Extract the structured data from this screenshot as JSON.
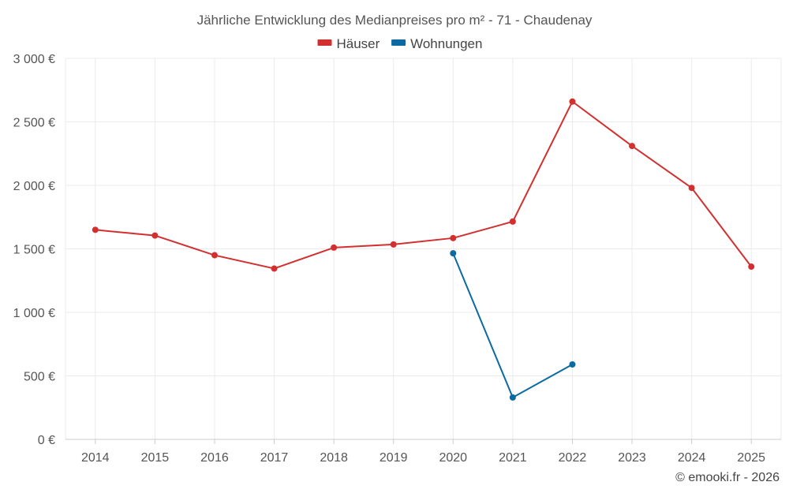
{
  "chart_data": {
    "type": "line",
    "title": "Jährliche Entwicklung des Medianpreises pro m² - 71 - Chaudenay",
    "x": [
      "2014",
      "2015",
      "2016",
      "2017",
      "2018",
      "2019",
      "2020",
      "2021",
      "2022",
      "2023",
      "2024",
      "2025"
    ],
    "ylim": [
      0,
      3000
    ],
    "yticks": [
      0,
      500,
      1000,
      1500,
      2000,
      2500,
      3000
    ],
    "ytick_labels": [
      "0 €",
      "500 €",
      "1 000 €",
      "1 500 €",
      "2 000 €",
      "2 500 €",
      "3 000 €"
    ],
    "grid": true,
    "legend_position": "top-center",
    "series": [
      {
        "name": "Häuser",
        "color": "#d32f2f",
        "values": [
          1650,
          1605,
          1450,
          1345,
          1510,
          1535,
          1585,
          1715,
          2660,
          2310,
          1980,
          1360
        ]
      },
      {
        "name": "Wohnungen",
        "color": "#0b6aa2",
        "values": [
          null,
          null,
          null,
          null,
          null,
          null,
          1465,
          330,
          590,
          null,
          null,
          null
        ]
      }
    ]
  },
  "credit": "© emooki.fr - 2026"
}
